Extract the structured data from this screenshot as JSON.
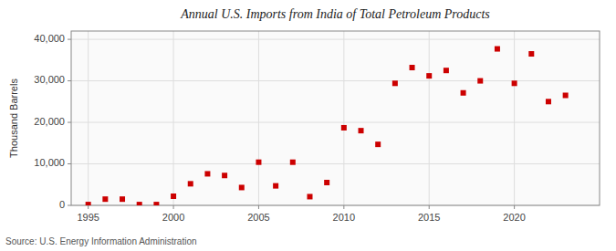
{
  "chart_data": {
    "type": "scatter",
    "title": "Annual U.S. Imports from India of Total Petroleum Products",
    "ylabel": "Thousand Barrels",
    "source": "Source: U.S. Energy Information Administration",
    "x": [
      1995,
      1996,
      1997,
      1998,
      1999,
      2000,
      2001,
      2002,
      2003,
      2004,
      2005,
      2006,
      2007,
      2008,
      2009,
      2010,
      2011,
      2012,
      2013,
      2014,
      2015,
      2016,
      2017,
      2018,
      2019,
      2020,
      2021,
      2022,
      2023
    ],
    "values": [
      200,
      1500,
      1500,
      200,
      200,
      2200,
      5200,
      7600,
      7200,
      4300,
      10400,
      4700,
      10400,
      2100,
      5500,
      18700,
      18000,
      14700,
      29400,
      33200,
      31200,
      32500,
      27100,
      30000,
      37700,
      29400,
      36500,
      25000,
      26500
    ],
    "color": "#cc0000",
    "marker": "square",
    "xlim": [
      1994,
      2025
    ],
    "ylim": [
      0,
      42000
    ],
    "xticks": [
      1995,
      2000,
      2005,
      2010,
      2015,
      2020
    ],
    "yticks": [
      0,
      {
        "value": 10000,
        "label": "10,000"
      },
      {
        "value": 20000,
        "label": "20,000"
      },
      {
        "value": 30000,
        "label": "30,000"
      },
      {
        "value": 40000,
        "label": "40,000"
      }
    ],
    "grid": true
  }
}
